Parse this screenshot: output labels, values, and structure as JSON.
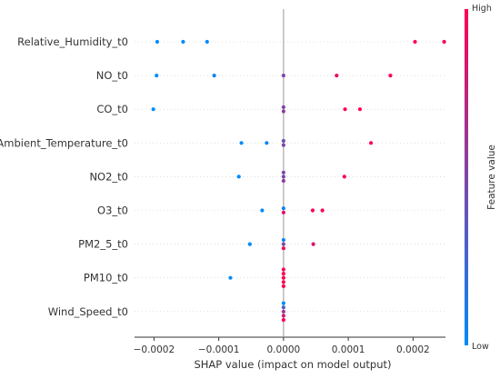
{
  "chart_data": {
    "type": "scatter",
    "title": "",
    "xlabel": "SHAP value (impact on model output)",
    "xlim": [
      -0.00023,
      0.00025
    ],
    "x_ticks": [
      -0.0002,
      -0.0001,
      0.0,
      0.0001,
      0.0002
    ],
    "x_tick_labels": [
      "−0.0002",
      "−0.0001",
      "0.0000",
      "0.0001",
      "0.0002"
    ],
    "features": [
      {
        "name": "Relative_Humidity_t0",
        "points": [
          {
            "x": -0.000195,
            "v": 0.0
          },
          {
            "x": -0.000155,
            "v": 0.0
          },
          {
            "x": -0.000118,
            "v": 0.0
          },
          {
            "x": 0.000203,
            "v": 1.0
          },
          {
            "x": 0.000248,
            "v": 1.0
          }
        ]
      },
      {
        "name": "NO_t0",
        "points": [
          {
            "x": -0.000196,
            "v": 0.0
          },
          {
            "x": -0.000107,
            "v": 0.05
          },
          {
            "x": 0.0,
            "v": 0.5
          },
          {
            "x": 8.2e-05,
            "v": 0.9
          },
          {
            "x": 0.000165,
            "v": 1.0
          }
        ]
      },
      {
        "name": "CO_t0",
        "points": [
          {
            "x": -0.000201,
            "v": 0.0
          },
          {
            "x": 0.0,
            "v": 0.5
          },
          {
            "x": 0.0,
            "v": 0.55
          },
          {
            "x": 9.5e-05,
            "v": 1.0
          },
          {
            "x": 0.000118,
            "v": 1.0
          }
        ]
      },
      {
        "name": "Ambient_Temperature_t0",
        "points": [
          {
            "x": -6.5e-05,
            "v": 0.0
          },
          {
            "x": -2.6e-05,
            "v": 0.05
          },
          {
            "x": 0.0,
            "v": 0.45
          },
          {
            "x": 0.0,
            "v": 0.5
          },
          {
            "x": 0.000135,
            "v": 1.0
          }
        ]
      },
      {
        "name": "NO2_t0",
        "points": [
          {
            "x": -6.9e-05,
            "v": 0.0
          },
          {
            "x": 0.0,
            "v": 0.5
          },
          {
            "x": 0.0,
            "v": 0.5
          },
          {
            "x": 0.0,
            "v": 0.55
          },
          {
            "x": 9.4e-05,
            "v": 1.0
          }
        ]
      },
      {
        "name": "O3_t0",
        "points": [
          {
            "x": -3.3e-05,
            "v": 0.0
          },
          {
            "x": 0.0,
            "v": 0.05
          },
          {
            "x": 0.0,
            "v": 0.9
          },
          {
            "x": 4.5e-05,
            "v": 1.0
          },
          {
            "x": 6e-05,
            "v": 1.0
          }
        ]
      },
      {
        "name": "PM2_5_t0",
        "points": [
          {
            "x": -5.2e-05,
            "v": 0.0
          },
          {
            "x": 0.0,
            "v": 0.05
          },
          {
            "x": 0.0,
            "v": 0.5
          },
          {
            "x": 0.0,
            "v": 0.95
          },
          {
            "x": 4.6e-05,
            "v": 0.85
          }
        ]
      },
      {
        "name": "PM10_t0",
        "points": [
          {
            "x": -8.2e-05,
            "v": 0.0
          },
          {
            "x": 0.0,
            "v": 1.0
          },
          {
            "x": 0.0,
            "v": 1.0
          },
          {
            "x": 0.0,
            "v": 1.0
          },
          {
            "x": 0.0,
            "v": 1.0
          },
          {
            "x": 0.0,
            "v": 1.0
          }
        ]
      },
      {
        "name": "Wind_Speed_t0",
        "points": [
          {
            "x": 0.0,
            "v": 0.0
          },
          {
            "x": 0.0,
            "v": 0.3
          },
          {
            "x": 0.0,
            "v": 0.6
          },
          {
            "x": 0.0,
            "v": 0.8
          },
          {
            "x": 0.0,
            "v": 1.0
          }
        ]
      }
    ],
    "colorbar": {
      "label": "Feature value",
      "high_label": "High",
      "low_label": "Low",
      "low_color": "#008bfb",
      "high_color": "#ff0052"
    },
    "grid": false,
    "zero_line": true
  }
}
